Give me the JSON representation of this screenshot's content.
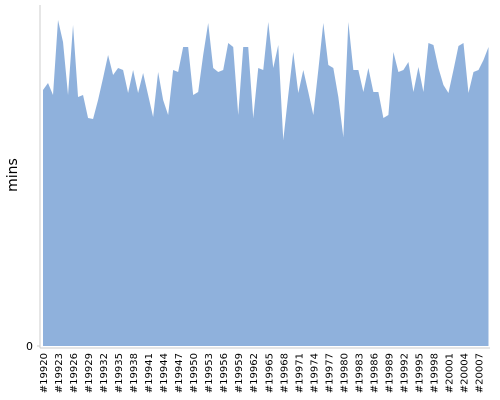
{
  "chart_data": {
    "type": "area",
    "y_label": "mins",
    "categories": [
      "#19920",
      null,
      null,
      "#19923",
      null,
      null,
      "#19926",
      null,
      null,
      "#19929",
      null,
      null,
      "#19932",
      null,
      null,
      "#19935",
      null,
      null,
      "#19938",
      null,
      null,
      "#19941",
      null,
      null,
      "#19944",
      null,
      null,
      "#19947",
      null,
      null,
      "#19950",
      null,
      null,
      "#19953",
      null,
      null,
      "#19956",
      null,
      null,
      "#19959",
      null,
      null,
      "#19962",
      null,
      null,
      "#19965",
      null,
      null,
      "#19968",
      null,
      null,
      "#19971",
      null,
      null,
      "#19974",
      null,
      null,
      "#19977",
      null,
      null,
      "#19980",
      null,
      null,
      "#19983",
      null,
      null,
      "#19986",
      null,
      null,
      "#19989",
      null,
      null,
      "#19992",
      null,
      null,
      "#19995",
      null,
      null,
      "#19998",
      null,
      null,
      "#20001",
      null,
      null,
      "#20004",
      null,
      null,
      "#20007",
      null,
      null
    ],
    "values": [
      256,
      263,
      251,
      326,
      304,
      251,
      321,
      249,
      251,
      228,
      227,
      246,
      268,
      291,
      271,
      278,
      276,
      253,
      276,
      253,
      273,
      251,
      229,
      274,
      246,
      231,
      276,
      274,
      299,
      299,
      251,
      254,
      291,
      323,
      278,
      274,
      276,
      303,
      299,
      231,
      299,
      299,
      228,
      278,
      276,
      324,
      278,
      301,
      206,
      251,
      294,
      253,
      276,
      254,
      231,
      276,
      323,
      281,
      278,
      249,
      209,
      324,
      276,
      276,
      254,
      278,
      254,
      254,
      228,
      231,
      294,
      274,
      276,
      284,
      254,
      279,
      254,
      303,
      301,
      278,
      261,
      253,
      276,
      300,
      303,
      253,
      274,
      276,
      286,
      299
    ],
    "color": "#8fb1dc",
    "ylim": [
      0,
      341
    ],
    "yticks": [
      0
    ]
  }
}
